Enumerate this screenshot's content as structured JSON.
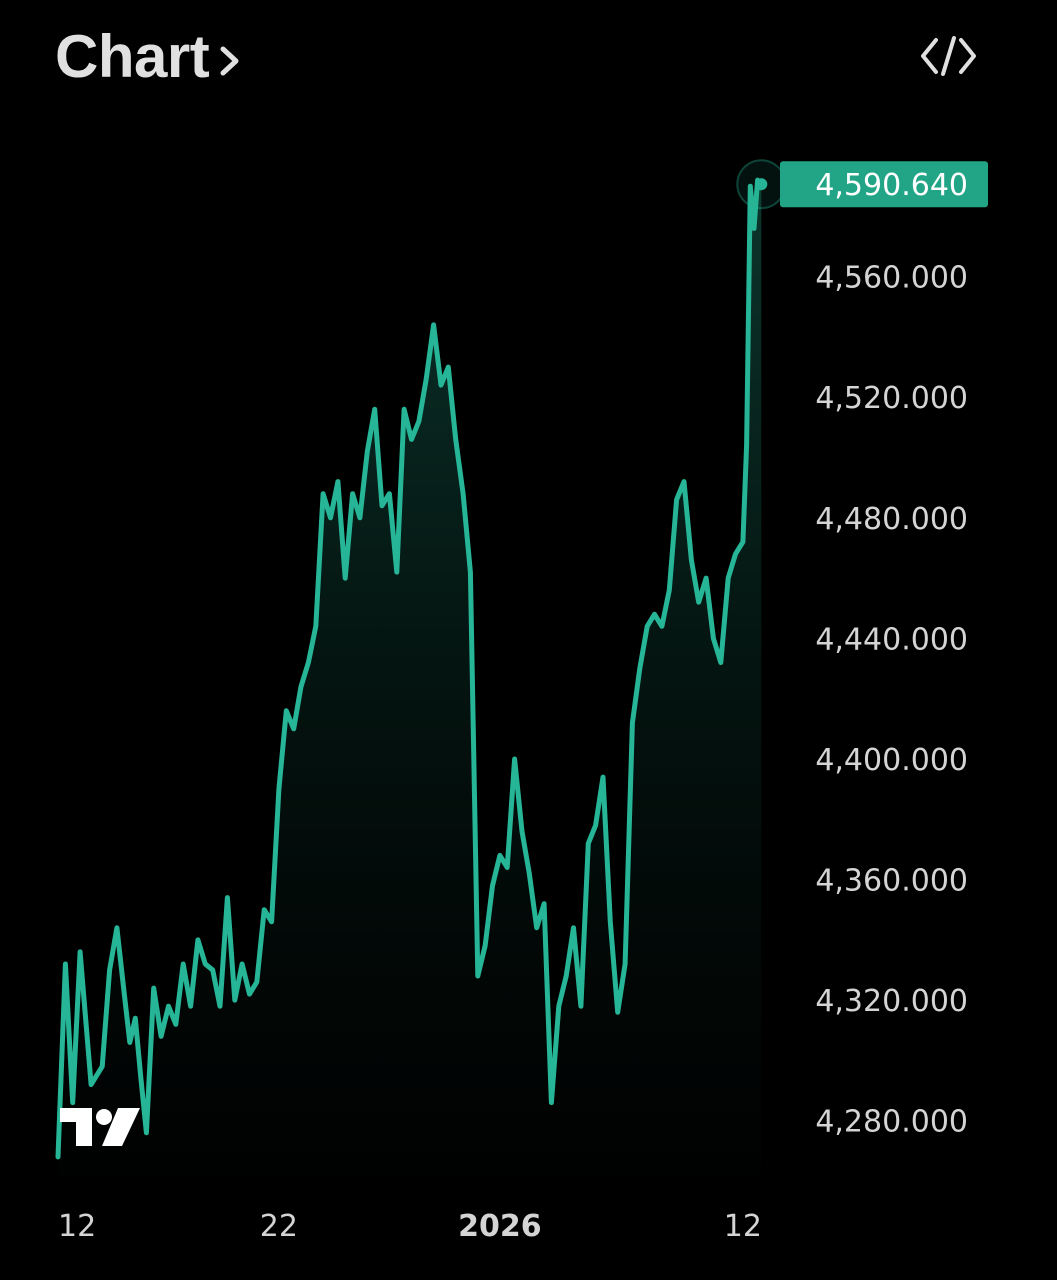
{
  "header": {
    "title": "Chart",
    "chevron_icon": "chevron-right-icon",
    "embed_icon": "code-brackets-icon"
  },
  "logo": {
    "icon": "tradingview-logo"
  },
  "colors": {
    "background": "#000000",
    "line": "#26b596",
    "price_tag_bg": "#22a586",
    "price_tag_text": "#ffffff",
    "axis_text": "#d4d4d4"
  },
  "chart_data": {
    "type": "area",
    "last_price": 4590.64,
    "last_price_label": "4,590.640",
    "y_ticks": [
      4280,
      4320,
      4360,
      4400,
      4440,
      4480,
      4520,
      4560
    ],
    "y_tick_labels": [
      "4,280.000",
      "4,320.000",
      "4,360.000",
      "4,400.000",
      "4,440.000",
      "4,480.000",
      "4,520.000",
      "4,560.000"
    ],
    "ylim": [
      4262,
      4602
    ],
    "x_ticks": [
      {
        "date": "2025-12-12",
        "label": "12",
        "bold": false
      },
      {
        "date": "2025-12-22",
        "label": "22",
        "bold": false
      },
      {
        "date": "2026-01-01",
        "label": "2026",
        "bold": true
      },
      {
        "date": "2026-01-12",
        "label": "12",
        "bold": false
      }
    ],
    "xlim": [
      "2025-12-12",
      "2026-01-13"
    ],
    "series": [
      {
        "points": [
          [
            "2025-12-12",
            4268
          ],
          [
            "2025-12-12",
            4332
          ],
          [
            "2025-12-12",
            4286
          ],
          [
            "2025-12-13",
            4336
          ],
          [
            "2025-12-13",
            4292
          ],
          [
            "2025-12-14",
            4298
          ],
          [
            "2025-12-14",
            4330
          ],
          [
            "2025-12-14",
            4344
          ],
          [
            "2025-12-15",
            4322
          ],
          [
            "2025-12-15",
            4306
          ],
          [
            "2025-12-15",
            4314
          ],
          [
            "2025-12-15",
            4294
          ],
          [
            "2025-12-16",
            4276
          ],
          [
            "2025-12-16",
            4324
          ],
          [
            "2025-12-16",
            4308
          ],
          [
            "2025-12-17",
            4318
          ],
          [
            "2025-12-17",
            4312
          ],
          [
            "2025-12-17",
            4332
          ],
          [
            "2025-12-18",
            4318
          ],
          [
            "2025-12-18",
            4340
          ],
          [
            "2025-12-18",
            4332
          ],
          [
            "2025-12-19",
            4330
          ],
          [
            "2025-12-19",
            4318
          ],
          [
            "2025-12-19",
            4354
          ],
          [
            "2025-12-20",
            4320
          ],
          [
            "2025-12-20",
            4332
          ],
          [
            "2025-12-20",
            4322
          ],
          [
            "2025-12-21",
            4326
          ],
          [
            "2025-12-21",
            4350
          ],
          [
            "2025-12-21",
            4346
          ],
          [
            "2025-12-22",
            4390
          ],
          [
            "2025-12-22",
            4416
          ],
          [
            "2025-12-22",
            4410
          ],
          [
            "2025-12-23",
            4424
          ],
          [
            "2025-12-23",
            4432
          ],
          [
            "2025-12-23",
            4444
          ],
          [
            "2025-12-24",
            4488
          ],
          [
            "2025-12-24",
            4480
          ],
          [
            "2025-12-24",
            4492
          ],
          [
            "2025-12-25",
            4460
          ],
          [
            "2025-12-25",
            4488
          ],
          [
            "2025-12-25",
            4480
          ],
          [
            "2025-12-26",
            4502
          ],
          [
            "2025-12-26",
            4516
          ],
          [
            "2025-12-26",
            4484
          ],
          [
            "2025-12-27",
            4488
          ],
          [
            "2025-12-27",
            4462
          ],
          [
            "2025-12-27",
            4516
          ],
          [
            "2025-12-28",
            4506
          ],
          [
            "2025-12-28",
            4512
          ],
          [
            "2025-12-28",
            4526
          ],
          [
            "2025-12-29",
            4544
          ],
          [
            "2025-12-29",
            4524
          ],
          [
            "2025-12-29",
            4530
          ],
          [
            "2025-12-30",
            4506
          ],
          [
            "2025-12-30",
            4488
          ],
          [
            "2025-12-30",
            4462
          ],
          [
            "2025-12-31",
            4328
          ],
          [
            "2025-12-31",
            4338
          ],
          [
            "2025-12-31",
            4358
          ],
          [
            "2026-01-01",
            4368
          ],
          [
            "2026-01-01",
            4364
          ],
          [
            "2026-01-01",
            4400
          ],
          [
            "2026-01-02",
            4376
          ],
          [
            "2026-01-02",
            4362
          ],
          [
            "2026-01-02",
            4344
          ],
          [
            "2026-01-03",
            4352
          ],
          [
            "2026-01-03",
            4286
          ],
          [
            "2026-01-03",
            4318
          ],
          [
            "2026-01-04",
            4328
          ],
          [
            "2026-01-04",
            4344
          ],
          [
            "2026-01-04",
            4318
          ],
          [
            "2026-01-05",
            4372
          ],
          [
            "2026-01-05",
            4378
          ],
          [
            "2026-01-05",
            4394
          ],
          [
            "2026-01-06",
            4346
          ],
          [
            "2026-01-06",
            4316
          ],
          [
            "2026-01-06",
            4332
          ],
          [
            "2026-01-07",
            4412
          ],
          [
            "2026-01-07",
            4430
          ],
          [
            "2026-01-07",
            4444
          ],
          [
            "2026-01-08",
            4448
          ],
          [
            "2026-01-08",
            4444
          ],
          [
            "2026-01-08",
            4456
          ],
          [
            "2026-01-09",
            4486
          ],
          [
            "2026-01-09",
            4492
          ],
          [
            "2026-01-09",
            4466
          ],
          [
            "2026-01-10",
            4452
          ],
          [
            "2026-01-10",
            4460
          ],
          [
            "2026-01-10",
            4440
          ],
          [
            "2026-01-11",
            4432
          ],
          [
            "2026-01-11",
            4460
          ],
          [
            "2026-01-11",
            4468
          ],
          [
            "2026-01-12",
            4472
          ],
          [
            "2026-01-12",
            4504
          ],
          [
            "2026-01-12",
            4590
          ],
          [
            "2026-01-12",
            4576
          ],
          [
            "2026-01-12",
            4592
          ],
          [
            "2026-01-12",
            4590.64
          ]
        ]
      }
    ],
    "grid": false,
    "legend": "none"
  }
}
